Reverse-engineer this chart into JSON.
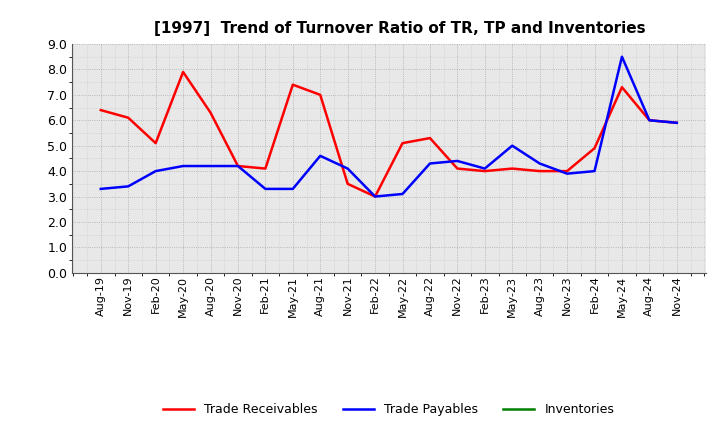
{
  "title": "[1997]  Trend of Turnover Ratio of TR, TP and Inventories",
  "x_labels": [
    "Aug-19",
    "Nov-19",
    "Feb-20",
    "May-20",
    "Aug-20",
    "Nov-20",
    "Feb-21",
    "May-21",
    "Aug-21",
    "Nov-21",
    "Feb-22",
    "May-22",
    "Aug-22",
    "Nov-22",
    "Feb-23",
    "May-23",
    "Aug-23",
    "Nov-23",
    "Feb-24",
    "May-24",
    "Aug-24",
    "Nov-24"
  ],
  "trade_receivables": [
    6.4,
    6.1,
    5.1,
    7.9,
    6.3,
    4.2,
    4.1,
    7.4,
    7.0,
    3.5,
    3.0,
    5.1,
    5.3,
    4.1,
    4.0,
    4.1,
    4.0,
    4.0,
    4.9,
    7.3,
    6.0,
    5.9
  ],
  "trade_payables": [
    3.3,
    3.4,
    4.0,
    4.2,
    4.2,
    4.2,
    3.3,
    3.3,
    4.6,
    4.1,
    3.0,
    3.1,
    4.3,
    4.4,
    4.1,
    5.0,
    4.3,
    3.9,
    4.0,
    8.5,
    6.0,
    5.9
  ],
  "inventories": [
    null,
    null,
    null,
    null,
    null,
    null,
    null,
    null,
    null,
    null,
    null,
    null,
    null,
    null,
    null,
    null,
    null,
    null,
    null,
    null,
    null,
    null
  ],
  "ylim": [
    0.0,
    9.0
  ],
  "yticks": [
    0.0,
    1.0,
    2.0,
    3.0,
    4.0,
    5.0,
    6.0,
    7.0,
    8.0,
    9.0
  ],
  "tr_color": "#ff0000",
  "tp_color": "#0000ff",
  "inv_color": "#008000",
  "legend_labels": [
    "Trade Receivables",
    "Trade Payables",
    "Inventories"
  ],
  "background_color": "#ffffff",
  "grid_color": "#999999"
}
